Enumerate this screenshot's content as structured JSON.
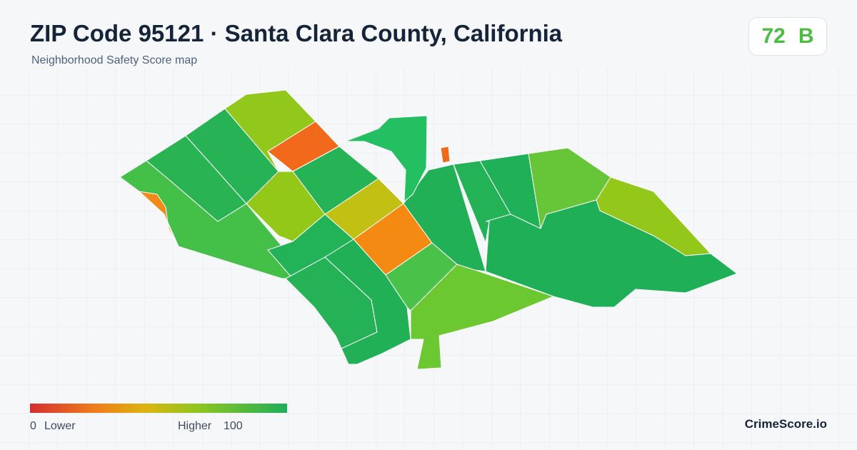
{
  "header": {
    "title": "ZIP Code 95121 · Santa Clara County, California",
    "subtitle": "Neighborhood Safety Score map"
  },
  "score_badge": {
    "score": "72",
    "grade": "B"
  },
  "legend": {
    "min": "0",
    "min_label": "Lower",
    "max_label": "Higher",
    "max": "100"
  },
  "brand": "CrimeScore.io"
}
